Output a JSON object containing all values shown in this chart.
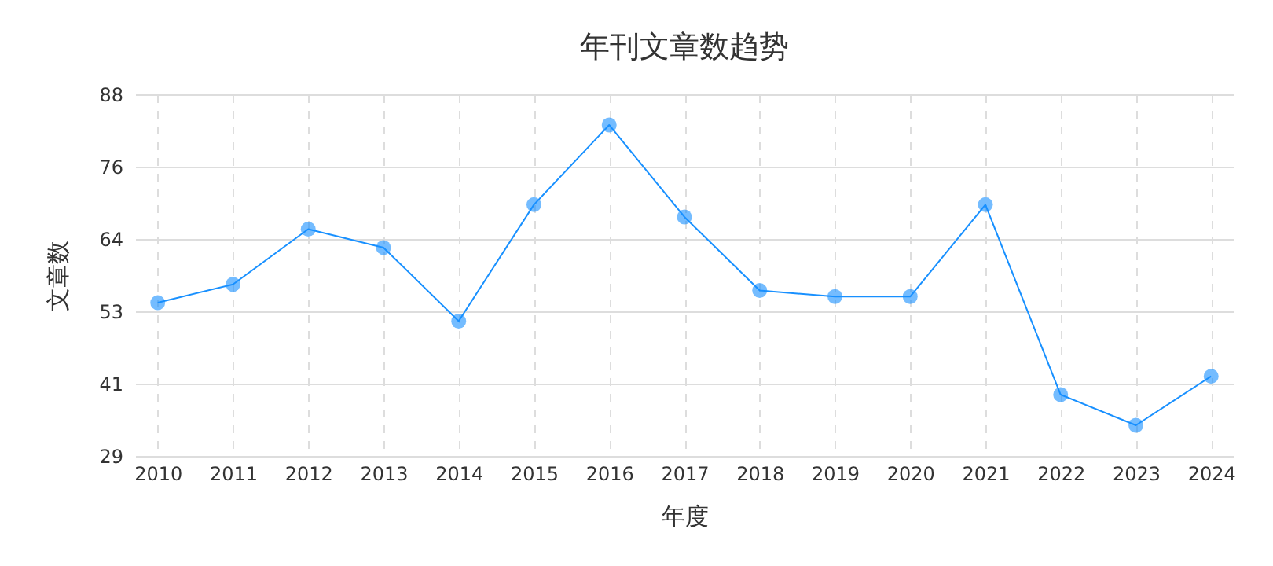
{
  "chart_data": {
    "type": "line",
    "title": "年刊文章数趋势",
    "xlabel": "年度",
    "ylabel": "文章数",
    "categories": [
      "2010",
      "2011",
      "2012",
      "2013",
      "2014",
      "2015",
      "2016",
      "2017",
      "2018",
      "2019",
      "2020",
      "2021",
      "2022",
      "2023",
      "2024"
    ],
    "series": [
      {
        "color": "#1890ff",
        "values": [
          54,
          57,
          66,
          63,
          51,
          70,
          83,
          68,
          56,
          55,
          55,
          70,
          39,
          34,
          42
        ]
      }
    ],
    "ylim": [
      29,
      88
    ],
    "yticks": [
      29,
      {
        "value": 40.8,
        "label": "41"
      },
      {
        "value": 52.6,
        "label": "53"
      },
      {
        "value": 64.4,
        "label": "64"
      },
      {
        "value": 76.2,
        "label": "76"
      },
      88
    ],
    "grid": true,
    "marker": "circle",
    "legend": false
  }
}
